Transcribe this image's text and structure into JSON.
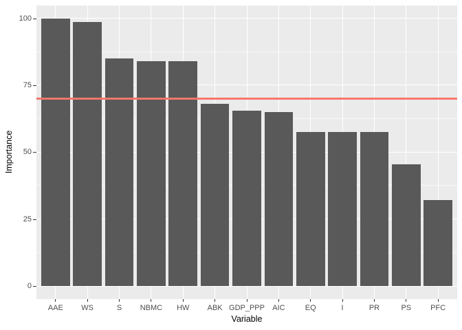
{
  "chart_data": {
    "type": "bar",
    "title": "",
    "xlabel": "Variable",
    "ylabel": "Importance",
    "categories": [
      "AAE",
      "WS",
      "S",
      "NBMC",
      "HW",
      "ABK",
      "GDP_PPP",
      "AIC",
      "EQ",
      "I",
      "PR",
      "PS",
      "PFC"
    ],
    "values": [
      100,
      98.5,
      85,
      84,
      84,
      68,
      65.5,
      65,
      57.5,
      57.5,
      57.5,
      45.5,
      32
    ],
    "ylim": [
      0,
      100
    ],
    "yticks": [
      0,
      25,
      50,
      75,
      100
    ],
    "minor_yticks": [
      12.5,
      37.5,
      62.5,
      87.5
    ],
    "threshold_line": {
      "value": 70,
      "color": "#F8766D"
    },
    "bar_color": "#595959",
    "panel_background": "#EBEBEB",
    "grid_color": "#FFFFFF",
    "tick_label_color": "#4D4D4D",
    "axis_title_color": "#000000",
    "grid": true,
    "legend_position": "none"
  }
}
